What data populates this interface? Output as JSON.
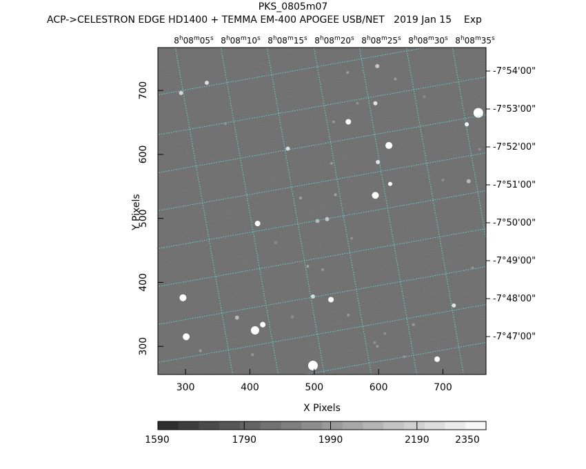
{
  "chart_data": {
    "type": "heatmap",
    "title": "PKS_0805m07",
    "subtitle": "ACP->CELESTRON EDGE HD1400 + TEMMA EM-400 APOGEE USB/NET   2019 Jan 15    Exp",
    "xlabel": "X Pixels",
    "ylabel": "Y Pixels",
    "xlim": [
      257,
      767
    ],
    "ylim": [
      256,
      767
    ],
    "x_ticks": [
      "300",
      "400",
      "500",
      "600",
      "700"
    ],
    "x_tick_values": [
      300,
      400,
      500,
      600,
      700
    ],
    "y_ticks": [
      "300",
      "400",
      "500",
      "600",
      "700"
    ],
    "y_tick_values": [
      300,
      400,
      500,
      600,
      700
    ],
    "ra_ticks": [
      {
        "h": "8",
        "m": "08",
        "s": "05"
      },
      {
        "h": "8",
        "m": "08",
        "s": "10"
      },
      {
        "h": "8",
        "m": "08",
        "s": "15"
      },
      {
        "h": "8",
        "m": "08",
        "s": "20"
      },
      {
        "h": "8",
        "m": "08",
        "s": "25"
      },
      {
        "h": "8",
        "m": "08",
        "s": "30"
      },
      {
        "h": "8",
        "m": "08",
        "s": "35"
      }
    ],
    "dec_ticks": [
      "-7°54'00\"",
      "-7°53'00\"",
      "-7°52'00\"",
      "-7°51'00\"",
      "-7°50'00\"",
      "-7°49'00\"",
      "-7°48'00\"",
      "-7°47'00\""
    ],
    "colorbar": {
      "min": 1590,
      "max": 2350,
      "labels": [
        "1590",
        "1790",
        "1990",
        "2190",
        "2350"
      ],
      "label_values": [
        1590,
        1790,
        1990,
        2190,
        2350
      ]
    },
    "stars": [
      {
        "x": 755,
        "y": 665,
        "v": 2350,
        "r": 7
      },
      {
        "x": 498,
        "y": 270,
        "v": 2350,
        "r": 7
      },
      {
        "x": 408,
        "y": 325,
        "v": 2350,
        "r": 6
      },
      {
        "x": 296,
        "y": 376,
        "v": 2350,
        "r": 5
      },
      {
        "x": 301,
        "y": 315,
        "v": 2350,
        "r": 5
      },
      {
        "x": 616,
        "y": 614,
        "v": 2350,
        "r": 5
      },
      {
        "x": 595,
        "y": 536,
        "v": 2350,
        "r": 5
      },
      {
        "x": 526,
        "y": 373,
        "v": 2330,
        "r": 4
      },
      {
        "x": 412,
        "y": 492,
        "v": 2330,
        "r": 4
      },
      {
        "x": 691,
        "y": 280,
        "v": 2330,
        "r": 4
      },
      {
        "x": 553,
        "y": 651,
        "v": 2300,
        "r": 4
      },
      {
        "x": 420,
        "y": 334,
        "v": 2300,
        "r": 4
      },
      {
        "x": 618,
        "y": 554,
        "v": 2280,
        "r": 3
      },
      {
        "x": 737,
        "y": 647,
        "v": 2280,
        "r": 3
      },
      {
        "x": 599,
        "y": 588,
        "v": 2250,
        "r": 3
      },
      {
        "x": 595,
        "y": 680,
        "v": 2250,
        "r": 3
      },
      {
        "x": 459,
        "y": 609,
        "v": 2230,
        "r": 3
      },
      {
        "x": 717,
        "y": 364,
        "v": 2250,
        "r": 3
      },
      {
        "x": 333,
        "y": 712,
        "v": 2230,
        "r": 3
      },
      {
        "x": 293,
        "y": 696,
        "v": 2200,
        "r": 3
      },
      {
        "x": 498,
        "y": 378,
        "v": 2230,
        "r": 3
      },
      {
        "x": 520,
        "y": 499,
        "v": 2150,
        "r": 3
      },
      {
        "x": 505,
        "y": 496,
        "v": 2100,
        "r": 3
      },
      {
        "x": 598,
        "y": 738,
        "v": 2150,
        "r": 3
      },
      {
        "x": 740,
        "y": 558,
        "v": 2100,
        "r": 3
      },
      {
        "x": 380,
        "y": 345,
        "v": 2100,
        "r": 3
      },
      {
        "x": 479,
        "y": 532,
        "v": 2080,
        "r": 2
      },
      {
        "x": 533,
        "y": 537,
        "v": 2080,
        "r": 2
      },
      {
        "x": 490,
        "y": 425,
        "v": 2080,
        "r": 2
      },
      {
        "x": 527,
        "y": 586,
        "v": 2050,
        "r": 2
      },
      {
        "x": 626,
        "y": 718,
        "v": 2050,
        "r": 2
      },
      {
        "x": 552,
        "y": 728,
        "v": 2050,
        "r": 2
      },
      {
        "x": 553,
        "y": 349,
        "v": 2050,
        "r": 2
      },
      {
        "x": 654,
        "y": 334,
        "v": 2050,
        "r": 2
      },
      {
        "x": 598,
        "y": 300,
        "v": 2030,
        "r": 2
      },
      {
        "x": 513,
        "y": 420,
        "v": 2030,
        "r": 2
      },
      {
        "x": 323,
        "y": 293,
        "v": 2050,
        "r": 2
      },
      {
        "x": 404,
        "y": 287,
        "v": 2030,
        "r": 2
      },
      {
        "x": 530,
        "y": 651,
        "v": 2030,
        "r": 2
      },
      {
        "x": 594,
        "y": 306,
        "v": 2000,
        "r": 2
      },
      {
        "x": 567,
        "y": 680,
        "v": 2000,
        "r": 2
      },
      {
        "x": 746,
        "y": 423,
        "v": 2000,
        "r": 2
      },
      {
        "x": 558,
        "y": 469,
        "v": 2000,
        "r": 2
      },
      {
        "x": 610,
        "y": 320,
        "v": 2000,
        "r": 2
      },
      {
        "x": 362,
        "y": 648,
        "v": 1990,
        "r": 2
      },
      {
        "x": 466,
        "y": 346,
        "v": 1990,
        "r": 2
      },
      {
        "x": 700,
        "y": 560,
        "v": 1980,
        "r": 2
      },
      {
        "x": 671,
        "y": 690,
        "v": 1980,
        "r": 2
      },
      {
        "x": 640,
        "y": 284,
        "v": 1980,
        "r": 2
      },
      {
        "x": 440,
        "y": 462,
        "v": 1980,
        "r": 2
      },
      {
        "x": 757,
        "y": 608,
        "v": 1980,
        "r": 2
      }
    ],
    "sky_level": 1880,
    "grid": true
  }
}
